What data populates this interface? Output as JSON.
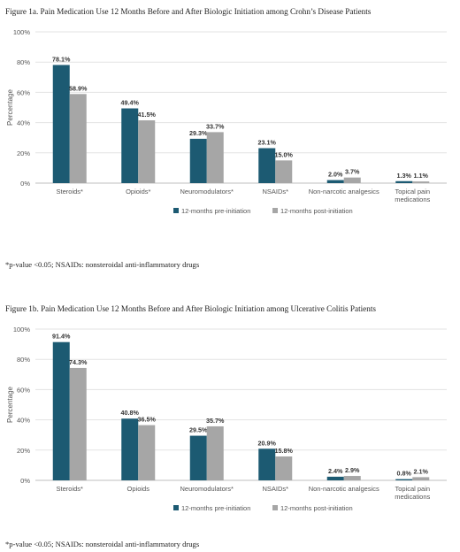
{
  "figures": [
    {
      "title": "Figure 1a. Pain Medication Use 12 Months Before and After Biologic Initiation among Crohn’s Disease Patients",
      "footnote": "*p-value <0.05; NSAIDs: nonsteroidal anti-inflammatory drugs"
    },
    {
      "title": "Figure 1b. Pain Medication Use 12 Months Before and After Biologic Initiation among Ulcerative Colitis Patients",
      "footnote": "*p-value <0.05; NSAIDs: nonsteroidal anti-inflammatory drugs"
    }
  ],
  "chart_data": [
    {
      "type": "bar",
      "title": "",
      "xlabel": "",
      "ylabel": "Percentage",
      "ylim": [
        0,
        100
      ],
      "yticks": [
        "0%",
        "20%",
        "40%",
        "60%",
        "80%",
        "100%"
      ],
      "categories": [
        [
          "Steroids*"
        ],
        [
          "Opioids*"
        ],
        [
          "Neuromodulators*"
        ],
        [
          "NSAIDs*"
        ],
        [
          "Non-narcotic analgesics"
        ],
        [
          "Topical pain",
          "medications"
        ]
      ],
      "series": [
        {
          "name": "12-months pre-initiation",
          "color": "#1c5a72",
          "values": [
            78.1,
            49.4,
            29.3,
            23.1,
            2.0,
            1.3
          ],
          "labels": [
            "78.1%",
            "49.4%",
            "29.3%",
            "23.1%",
            "2.0%",
            "1.3%"
          ]
        },
        {
          "name": "12-months post-initiation",
          "color": "#a6a6a6",
          "values": [
            58.9,
            41.5,
            33.7,
            15.0,
            3.7,
            1.1
          ],
          "labels": [
            "58.9%",
            "41.5%",
            "33.7%",
            "15.0%",
            "3.7%",
            "1.1%"
          ]
        }
      ],
      "grid": true,
      "legend": "bottom-right"
    },
    {
      "type": "bar",
      "title": "",
      "xlabel": "",
      "ylabel": "Percentage",
      "ylim": [
        0,
        100
      ],
      "yticks": [
        "0%",
        "20%",
        "40%",
        "60%",
        "80%",
        "100%"
      ],
      "categories": [
        [
          "Steroids*"
        ],
        [
          "Opioids"
        ],
        [
          "Neuromodulators*"
        ],
        [
          "NSAIDs*"
        ],
        [
          "Non-narcotic analgesics"
        ],
        [
          "Topical pain",
          "medications"
        ]
      ],
      "series": [
        {
          "name": "12-months pre-initiation",
          "color": "#1c5a72",
          "values": [
            91.4,
            40.8,
            29.5,
            20.9,
            2.4,
            0.8
          ],
          "labels": [
            "91.4%",
            "40.8%",
            "29.5%",
            "20.9%",
            "2.4%",
            "0.8%"
          ]
        },
        {
          "name": "12-months post-initiation",
          "color": "#a6a6a6",
          "values": [
            74.3,
            36.5,
            35.7,
            15.8,
            2.9,
            2.1
          ],
          "labels": [
            "74.3%",
            "36.5%",
            "35.7%",
            "15.8%",
            "2.9%",
            "2.1%"
          ]
        }
      ],
      "grid": true,
      "legend": "bottom-right"
    }
  ]
}
